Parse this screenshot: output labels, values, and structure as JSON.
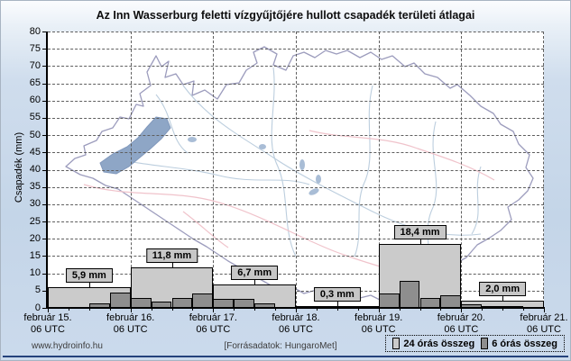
{
  "title": "Az Inn Wasserburg feletti vízgyűjtőjére hullott csapadék területi átlagai",
  "footer": {
    "site": "www.hydroinfo.hu",
    "source": "[Forrásadatok: HungaroMet]"
  },
  "legend": {
    "items": [
      {
        "label": "24 órás összeg",
        "color": "#cbcbcb"
      },
      {
        "label": "6 órás összeg",
        "color": "#8e8e8e"
      }
    ]
  },
  "map": {
    "outline_color": "#9c9cbd",
    "river_color": "#bccede",
    "border_color": "#f0c3cb",
    "lake_color": "#8ea6c6"
  },
  "chart_data": {
    "type": "bar",
    "title": "Az Inn Wasserburg feletti vízgyűjtőjére hullott csapadék területi átlagai",
    "xlabel": "",
    "ylabel": "Csapadék (mm)",
    "ylim": [
      0,
      80
    ],
    "ytick_step": 5,
    "grid": "dashed",
    "legend_position": "bottom-right",
    "x_tick_labels": [
      {
        "line1": "február 15.",
        "line2": "06 UTC"
      },
      {
        "line1": "február 16.",
        "line2": "06 UTC"
      },
      {
        "line1": "február 17.",
        "line2": "06 UTC"
      },
      {
        "line1": "február 18.",
        "line2": "06 UTC"
      },
      {
        "line1": "február 19.",
        "line2": "06 UTC"
      },
      {
        "line1": "február 20.",
        "line2": "06 UTC"
      },
      {
        "line1": "február 21.",
        "line2": "06 UTC"
      }
    ],
    "series": [
      {
        "name": "24 órás összeg",
        "color": "#cbcbcb",
        "values": [
          5.9,
          11.8,
          6.7,
          0.3,
          18.4,
          2.0
        ],
        "value_labels": [
          "5,9 mm",
          "11,8 mm",
          "6,7 mm",
          "0,3 mm",
          "18,4 mm",
          "2,0 mm"
        ]
      },
      {
        "name": "6 órás összeg",
        "color": "#8e8e8e",
        "values": [
          [
            0.0,
            0.0,
            1.4,
            4.5
          ],
          [
            3.0,
            1.7,
            3.0,
            4.1
          ],
          [
            2.7,
            2.6,
            1.4,
            0.0
          ],
          [
            0.1,
            0.1,
            0.1,
            0.0
          ],
          [
            4.1,
            7.8,
            2.9,
            3.6
          ],
          [
            1.1,
            0.4,
            0.3,
            0.2
          ]
        ]
      }
    ]
  }
}
